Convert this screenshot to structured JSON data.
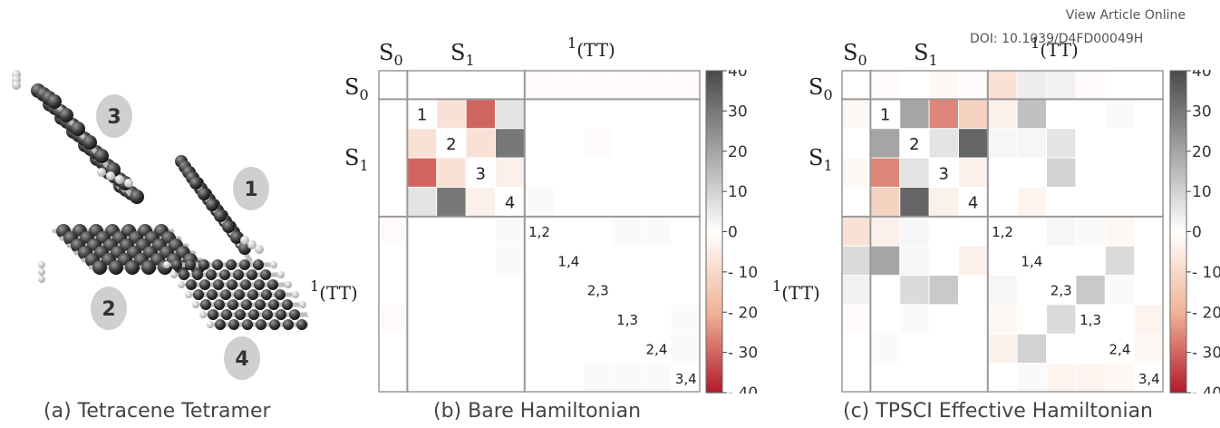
{
  "header": {
    "view_article": "View Article Online",
    "doi": "DOI: 10.1039/D4FD00049H"
  },
  "panel_a": {
    "caption": "(a) Tetracene Tetramer",
    "monomer_labels": [
      "3",
      "1",
      "2",
      "4"
    ]
  },
  "panel_b": {
    "caption": "(b) Bare Hamiltonian",
    "block_labels": {
      "s0": "S",
      "s0_sub": "0",
      "s1": "S",
      "s1_sub": "1",
      "tt_sup": "1",
      "tt": "(TT)"
    }
  },
  "panel_c": {
    "caption": "(c) TPSCI Effective Hamiltonian",
    "block_labels": {
      "s0": "S",
      "s0_sub": "0",
      "s1": "S",
      "s1_sub": "1",
      "tt_sup": "1",
      "tt": "(TT)"
    }
  },
  "diag_labels": {
    "s1": [
      "1",
      "2",
      "3",
      "4"
    ],
    "tt": [
      "1,2",
      "1,4",
      "2,3",
      "1,3",
      "2,4",
      "3,4"
    ]
  },
  "colorbar": {
    "ticks": [
      "40",
      "30",
      "20",
      "10",
      "0",
      "10",
      "20",
      "30",
      "40"
    ],
    "tick_values": [
      40,
      30,
      20,
      10,
      0,
      -10,
      -20,
      -30,
      -40
    ],
    "range": [
      -40,
      40
    ],
    "color_positive": "#4a4a4a",
    "color_zero": "#ffffff",
    "color_negative": "#b2182b"
  },
  "chart_data": [
    {
      "type": "heatmap",
      "title": "(b) Bare Hamiltonian",
      "blocks": [
        "S0",
        "S1",
        "1(TT)"
      ],
      "values": [
        [
          0,
          0,
          0,
          0,
          0,
          -1,
          -1,
          -1,
          -1,
          -1,
          -1
        ],
        [
          0,
          0,
          -8,
          -30,
          6,
          0,
          0,
          0,
          0,
          0,
          0
        ],
        [
          0,
          -8,
          0,
          -8,
          30,
          0,
          0,
          -1,
          0,
          0,
          0
        ],
        [
          0,
          -30,
          -8,
          0,
          -4,
          0,
          0,
          0,
          0,
          0,
          0
        ],
        [
          0,
          6,
          30,
          -4,
          0,
          1,
          0,
          0,
          0,
          0,
          0
        ],
        [
          -1,
          0,
          0,
          0,
          1,
          0,
          0,
          0,
          1,
          1,
          0
        ],
        [
          0,
          0,
          0,
          0,
          1,
          0,
          0,
          0,
          0,
          0,
          0
        ],
        [
          0,
          0,
          0,
          0,
          0,
          0,
          0,
          0,
          0,
          0,
          0
        ],
        [
          -1,
          0,
          0,
          0,
          0,
          0,
          0,
          0,
          0,
          0,
          1
        ],
        [
          0,
          0,
          0,
          0,
          0,
          0,
          0,
          0,
          0,
          0,
          1
        ],
        [
          0,
          0,
          0,
          0,
          0,
          0,
          0,
          1,
          1,
          1,
          0
        ]
      ]
    },
    {
      "type": "heatmap",
      "title": "(c) TPSCI Effective Hamiltonian",
      "blocks": [
        "S0",
        "S1",
        "1(TT)"
      ],
      "values": [
        [
          0,
          -1,
          0,
          -2,
          -1,
          -8,
          4,
          3,
          -1,
          0,
          0
        ],
        [
          -2,
          0,
          20,
          -26,
          -12,
          -4,
          14,
          0,
          0,
          1,
          0
        ],
        [
          0,
          20,
          0,
          6,
          34,
          2,
          2,
          6,
          0,
          0,
          0
        ],
        [
          -2,
          -26,
          6,
          0,
          -4,
          0,
          0,
          10,
          0,
          0,
          0
        ],
        [
          0,
          -12,
          34,
          -4,
          0,
          0,
          -3,
          0,
          0,
          0,
          0
        ],
        [
          -8,
          -4,
          2,
          0,
          0,
          0,
          0,
          2,
          1,
          -2,
          0
        ],
        [
          8,
          20,
          2,
          0,
          -4,
          0,
          0,
          0,
          0,
          8,
          0
        ],
        [
          3,
          0,
          8,
          12,
          0,
          2,
          0,
          0,
          12,
          1,
          0
        ],
        [
          -1,
          0,
          1,
          0,
          0,
          -2,
          0,
          8,
          0,
          0,
          -3
        ],
        [
          0,
          1,
          0,
          0,
          0,
          -4,
          10,
          0,
          0,
          0,
          -2
        ],
        [
          0,
          0,
          0,
          0,
          0,
          0,
          1,
          -3,
          -3,
          -2,
          0
        ]
      ]
    }
  ]
}
